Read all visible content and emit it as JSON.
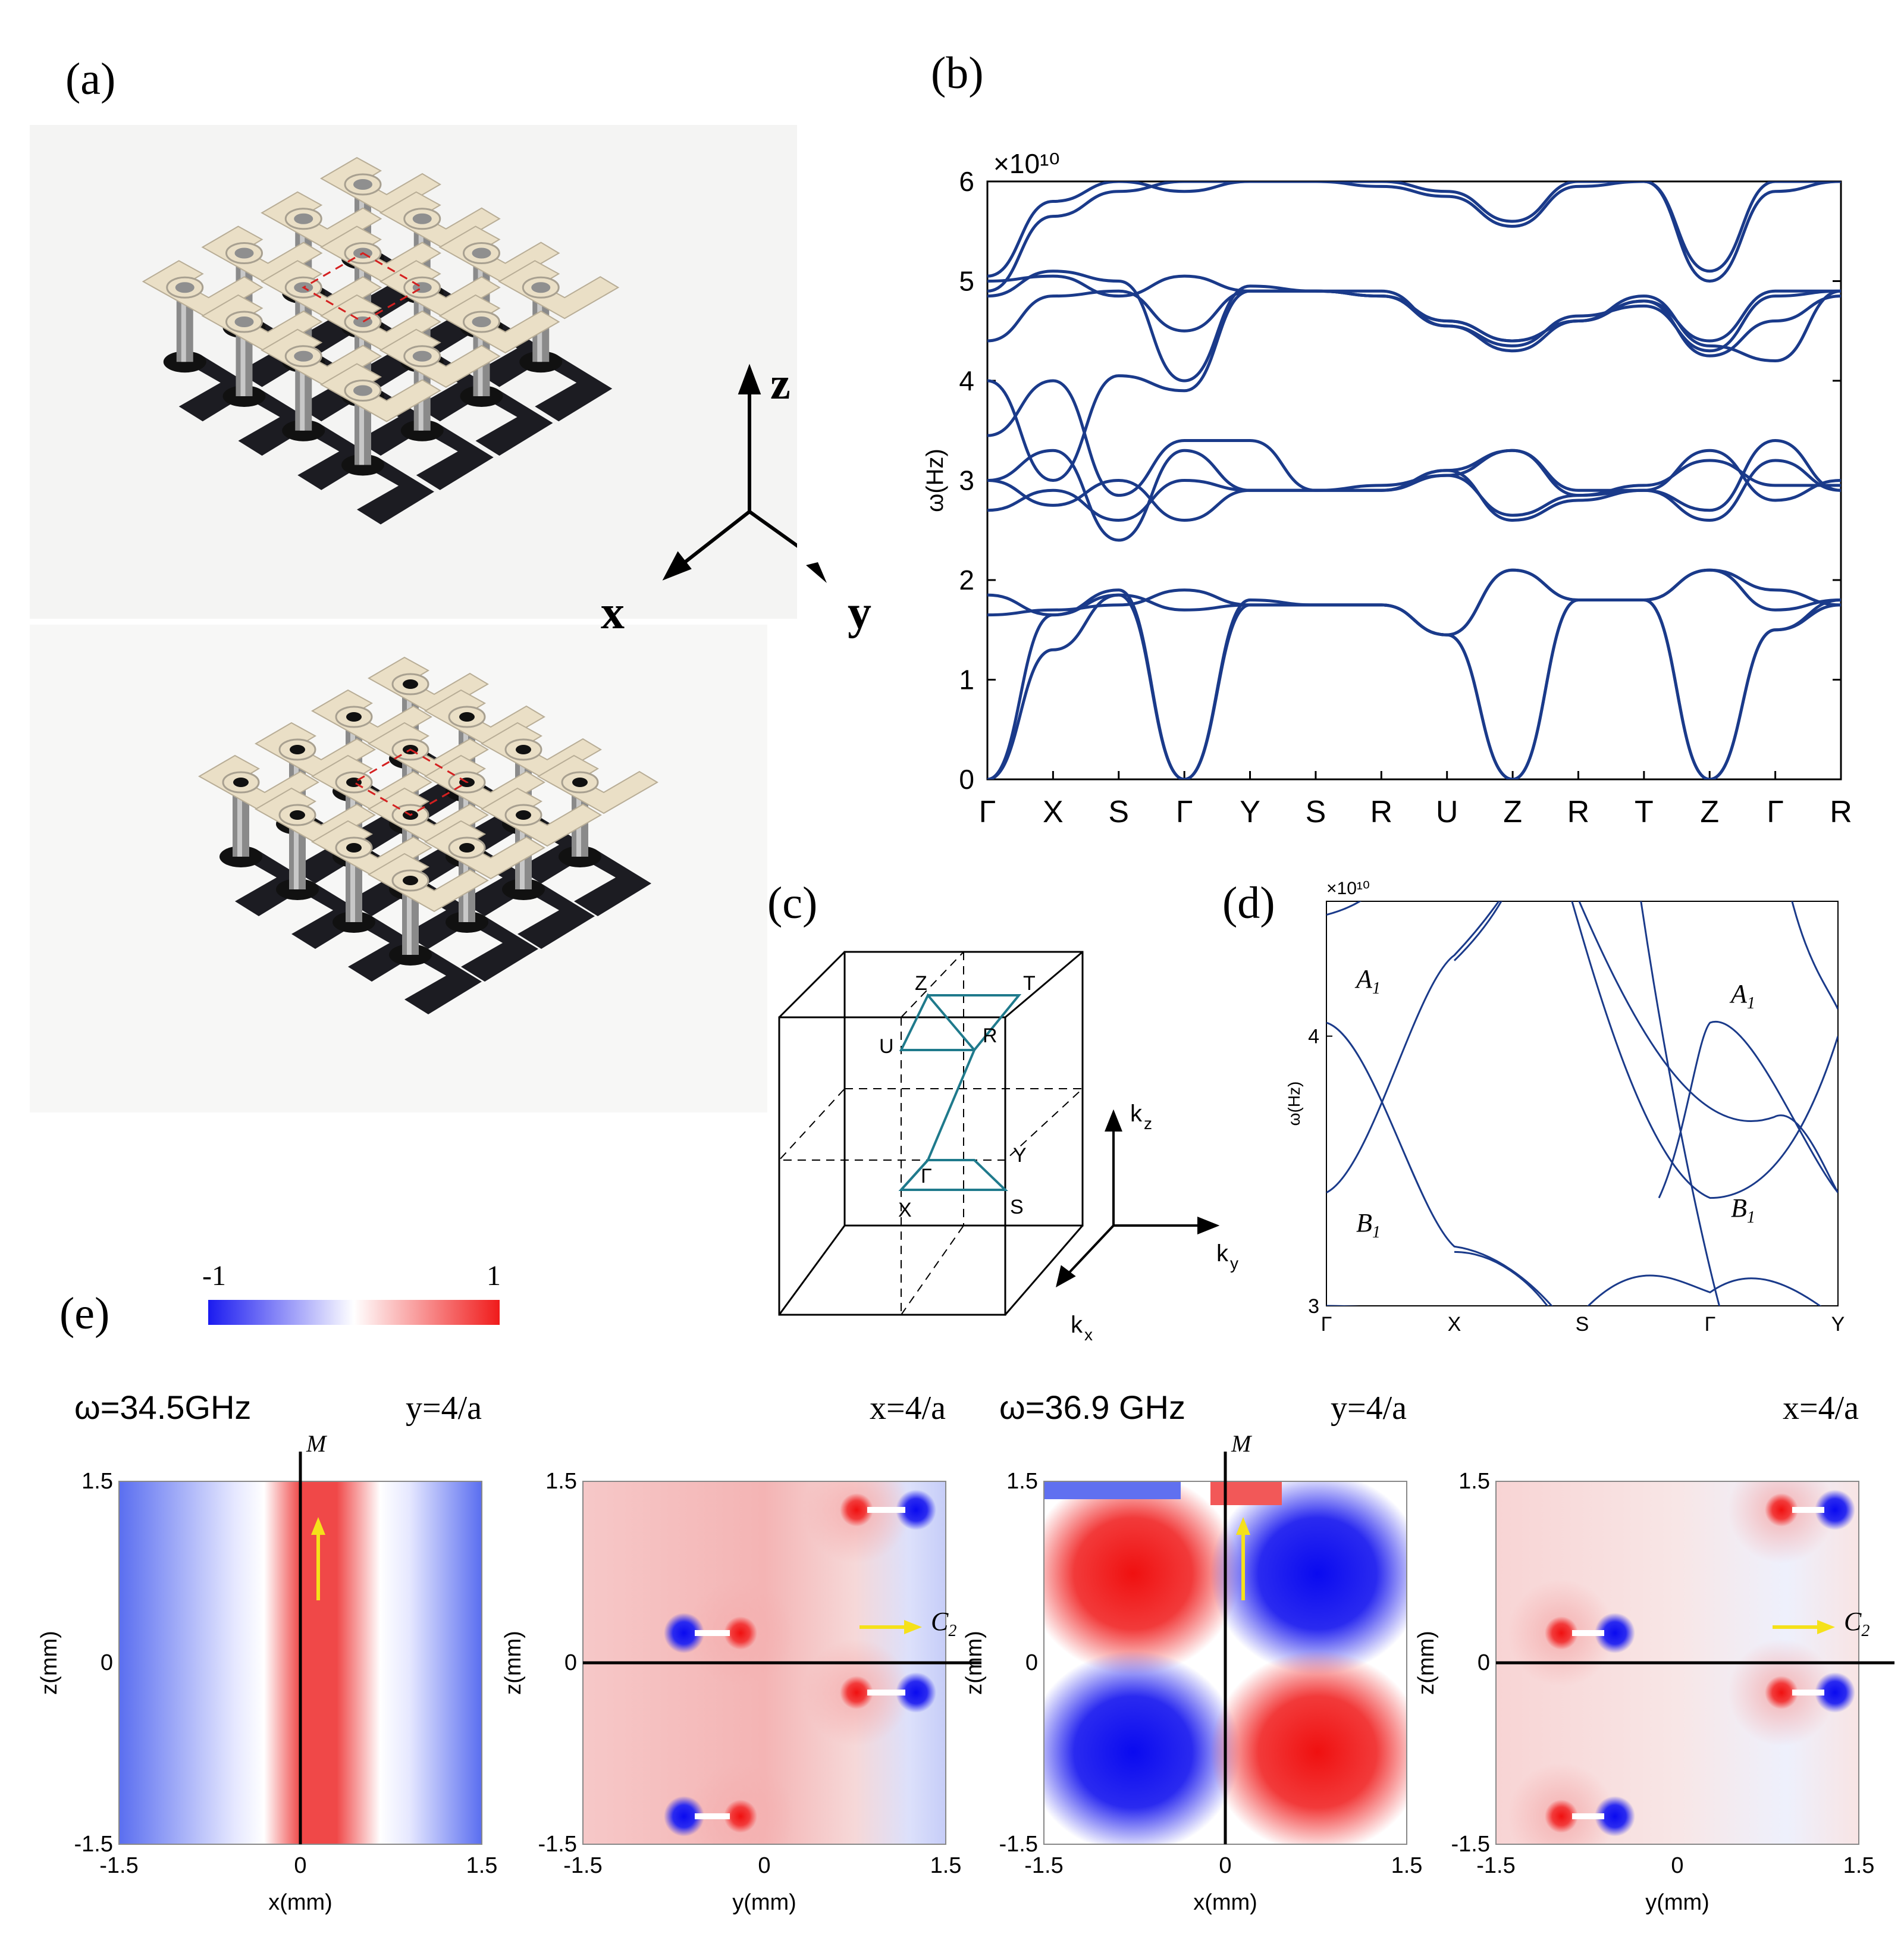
{
  "panels": {
    "a": "(a)",
    "b": "(b)",
    "c": "(c)",
    "d": "(d)",
    "e": "(e)"
  },
  "colors": {
    "band": "#1a3a8a",
    "bz_path": "#1f7a8c",
    "red": "#e8202a",
    "blue": "#1b1bf0",
    "yellow": "#f5e11a"
  },
  "axes3d": {
    "z": "z",
    "x": "x",
    "y": "y"
  },
  "chart_b": {
    "type": "line",
    "ylabel": "ω(Hz)",
    "exponent": "×10¹⁰",
    "ylim": [
      0,
      6
    ],
    "yticks": [
      "0",
      "1",
      "2",
      "3",
      "4",
      "5",
      "6"
    ],
    "xticks": [
      "Γ",
      "X",
      "S",
      "Γ",
      "Y",
      "S",
      "R",
      "U",
      "Z",
      "R",
      "T",
      "Z",
      "Γ",
      "R"
    ],
    "series": [
      {
        "values": [
          0,
          1.65,
          1.9,
          0,
          1.8,
          1.75,
          1.75,
          1.45,
          0,
          1.8,
          1.8,
          0,
          1.5,
          1.8
        ]
      },
      {
        "values": [
          0,
          1.3,
          1.85,
          0,
          1.75,
          1.75,
          1.75,
          1.45,
          0,
          1.8,
          1.8,
          0,
          1.5,
          1.75
        ]
      },
      {
        "values": [
          1.65,
          1.7,
          1.75,
          1.9,
          1.75,
          1.75,
          1.75,
          1.45,
          2.1,
          1.8,
          1.8,
          2.1,
          1.7,
          1.8
        ]
      },
      {
        "values": [
          1.85,
          1.65,
          1.85,
          1.7,
          1.75,
          1.75,
          1.75,
          1.45,
          2.1,
          1.8,
          1.8,
          2.1,
          1.9,
          1.75
        ]
      },
      {
        "values": [
          2.7,
          2.9,
          2.6,
          3.0,
          2.9,
          2.9,
          2.9,
          3.1,
          2.6,
          2.8,
          2.9,
          2.6,
          3.2,
          2.9
        ]
      },
      {
        "values": [
          3.0,
          2.75,
          3.0,
          2.6,
          2.9,
          2.9,
          2.9,
          3.05,
          2.65,
          2.85,
          2.9,
          2.7,
          3.4,
          2.9
        ]
      },
      {
        "values": [
          3.0,
          3.3,
          2.4,
          3.3,
          2.9,
          2.9,
          2.9,
          3.1,
          3.3,
          2.9,
          2.9,
          3.3,
          2.8,
          3.0
        ]
      },
      {
        "values": [
          3.45,
          4.0,
          2.85,
          3.4,
          3.4,
          2.9,
          2.95,
          3.05,
          3.3,
          2.85,
          2.95,
          3.2,
          2.95,
          2.95
        ]
      },
      {
        "values": [
          4.0,
          3.0,
          4.05,
          3.9,
          4.9,
          4.9,
          4.9,
          4.55,
          4.3,
          4.6,
          4.85,
          4.35,
          4.2,
          4.9
        ]
      },
      {
        "values": [
          4.4,
          4.85,
          4.9,
          4.5,
          4.9,
          4.9,
          4.85,
          4.6,
          4.4,
          4.6,
          4.8,
          4.25,
          4.6,
          4.85
        ]
      },
      {
        "values": [
          4.85,
          5.1,
          5.0,
          4.0,
          4.95,
          4.9,
          4.85,
          4.55,
          4.35,
          4.65,
          4.75,
          4.3,
          4.85,
          4.9
        ]
      },
      {
        "values": [
          5.0,
          5.05,
          4.85,
          5.05,
          4.9,
          4.9,
          4.85,
          4.6,
          4.4,
          4.6,
          4.8,
          4.4,
          4.9,
          4.9
        ]
      },
      {
        "values": [
          5.05,
          5.8,
          6.0,
          5.9,
          6.0,
          6.0,
          6.0,
          5.9,
          5.6,
          6.0,
          6.0,
          5.0,
          5.9,
          6.0
        ]
      },
      {
        "values": [
          4.9,
          5.65,
          5.9,
          6.0,
          6.0,
          6.0,
          5.95,
          5.85,
          5.55,
          5.95,
          6.0,
          5.1,
          6.0,
          6.0
        ]
      }
    ]
  },
  "bz": {
    "points": [
      "Z",
      "T",
      "U",
      "R",
      "Γ",
      "Y",
      "X",
      "S"
    ],
    "axes": [
      "k",
      "z",
      "k",
      "y",
      "k",
      "x"
    ]
  },
  "chart_d": {
    "type": "line",
    "ylabel": "ω(Hz)",
    "exponent": "×10¹⁰",
    "ylim": [
      3,
      4.5
    ],
    "yticks": [
      "3",
      "4"
    ],
    "xticks": [
      "Γ",
      "X",
      "S",
      "Γ",
      "Y"
    ],
    "labels": [
      {
        "base": "A",
        "sub": "1"
      },
      {
        "base": "B",
        "sub": "1"
      },
      {
        "base": "A",
        "sub": "1"
      },
      {
        "base": "B",
        "sub": "1"
      }
    ]
  },
  "colorbar": {
    "min": "-1",
    "max": "1"
  },
  "fields": [
    {
      "freq": "ω=34.5GHz",
      "plane": "y=4/a",
      "xlabel": "x(mm)",
      "ylabel": "z(mm)",
      "mirror": "M",
      "xticks": [
        "-1.5",
        "0",
        "1.5"
      ],
      "yticks": [
        "1.5",
        "0",
        "-1.5"
      ]
    },
    {
      "freq": "",
      "plane": "x=4/a",
      "xlabel": "y(mm)",
      "ylabel": "z(mm)",
      "mirror_c": "C",
      "mirror_c_sub": "2",
      "xticks": [
        "-1.5",
        "0",
        "1.5"
      ],
      "yticks": [
        "1.5",
        "0",
        "-1.5"
      ]
    },
    {
      "freq": "ω=36.9 GHz",
      "plane": "y=4/a",
      "xlabel": "x(mm)",
      "ylabel": "z(mm)",
      "mirror": "M",
      "xticks": [
        "-1.5",
        "0",
        "1.5"
      ],
      "yticks": [
        "1.5",
        "0",
        "-1.5"
      ]
    },
    {
      "freq": "",
      "plane": "x=4/a",
      "xlabel": "y(mm)",
      "ylabel": "z(mm)",
      "mirror_c": "C",
      "mirror_c_sub": "2",
      "xticks": [
        "-1.5",
        "0",
        "1.5"
      ],
      "yticks": [
        "1.5",
        "0",
        "-1.5"
      ]
    }
  ]
}
